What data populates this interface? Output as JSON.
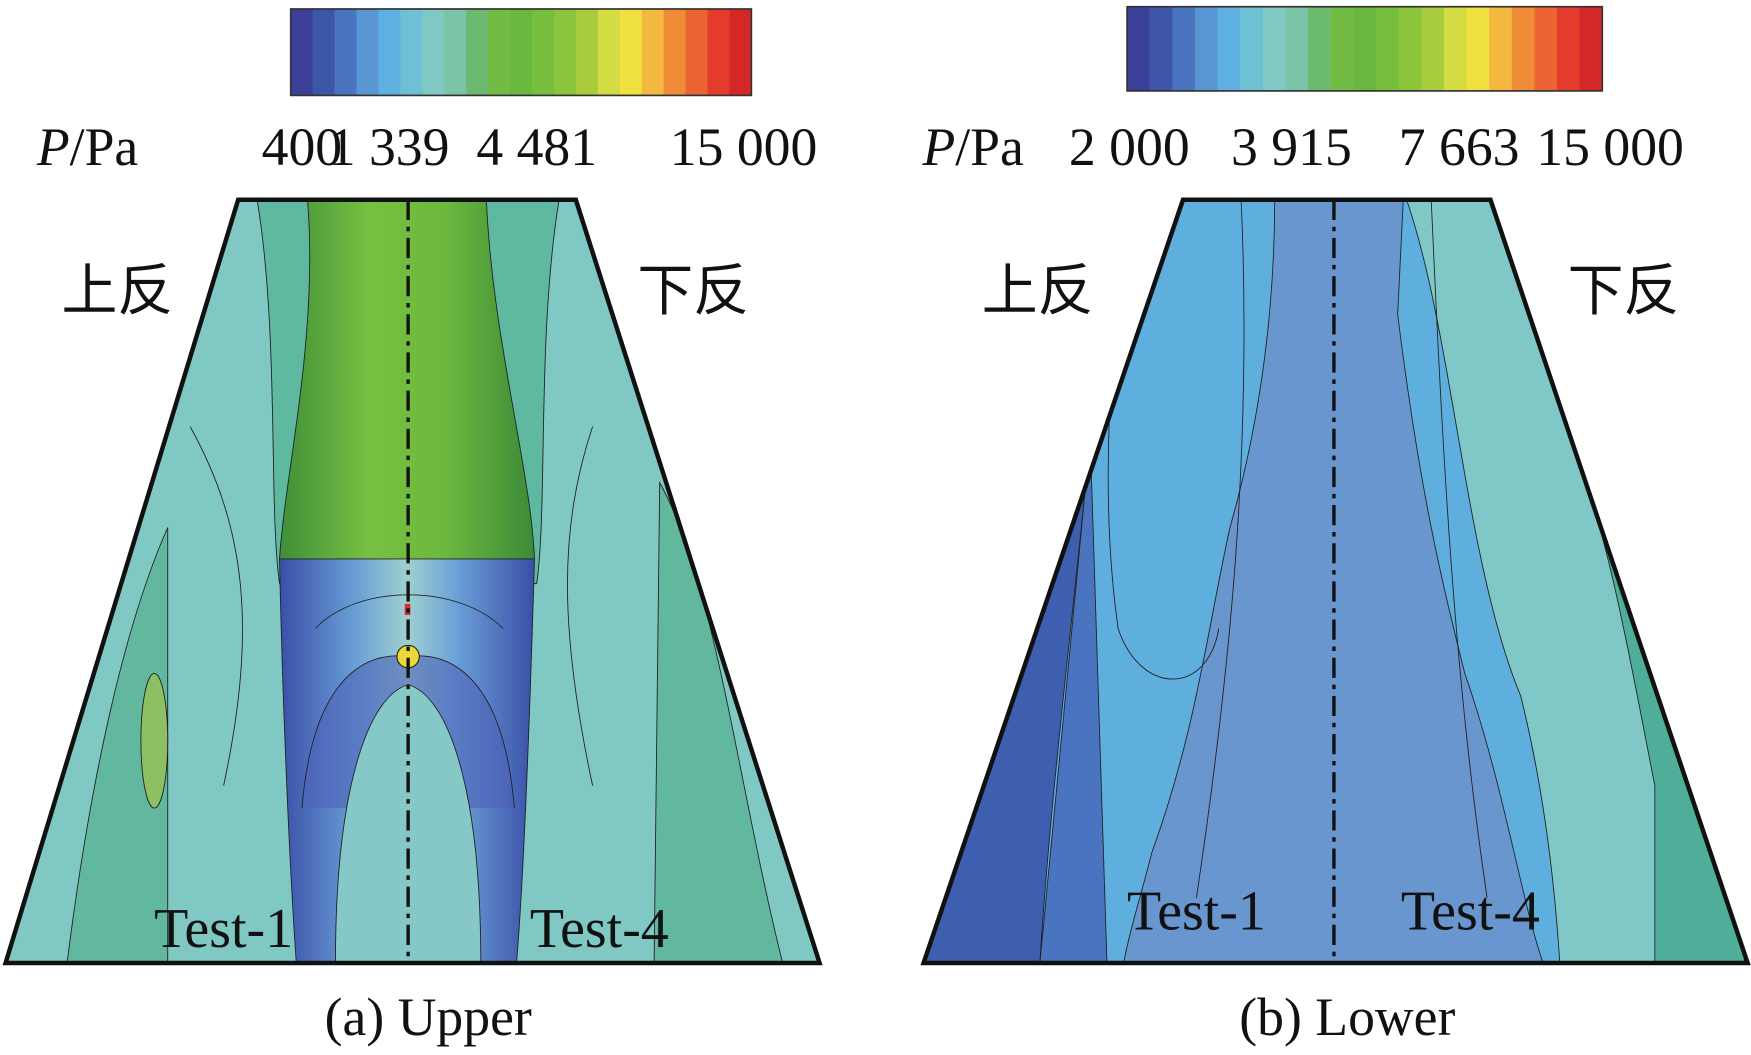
{
  "panels": [
    {
      "colorbar": {
        "quantity": "P",
        "unit": "/Pa",
        "ticks": [
          "400",
          "1 339",
          "4 481",
          "15 000"
        ]
      },
      "left_label": "上反",
      "right_label": "下反",
      "left_test": "Test-1",
      "right_test": "Test-4",
      "caption": "(a) Upper"
    },
    {
      "colorbar": {
        "quantity": "P",
        "unit": "/Pa",
        "ticks": [
          "2 000",
          "3 915",
          "7 663",
          "15 000"
        ]
      },
      "left_label": "上反",
      "right_label": "下反",
      "left_test": "Test-1",
      "right_test": "Test-4",
      "caption": "(b) Lower"
    }
  ]
}
